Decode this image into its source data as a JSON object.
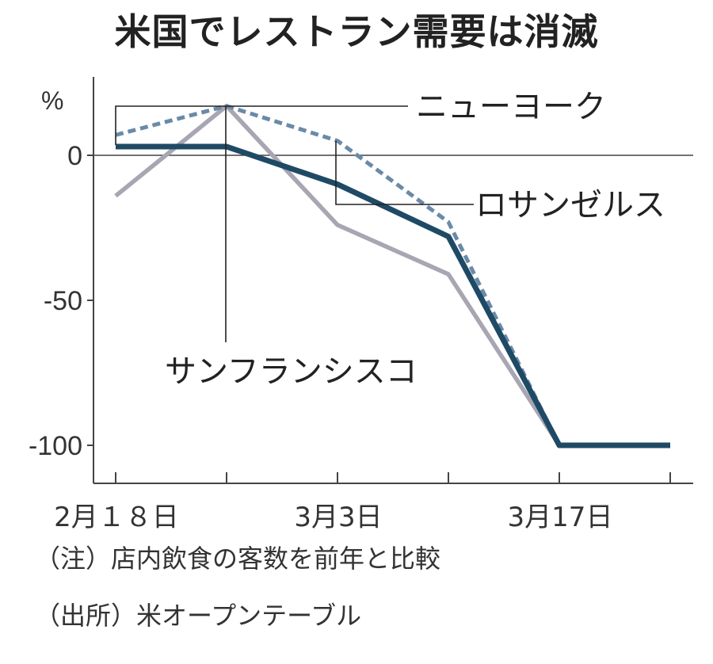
{
  "title": "米国でレストラン需要は消滅",
  "unit_label": "%",
  "notes": {
    "note": "（注）店内飲食の客数を前年と比較",
    "source": "（出所）米オープンテーブル"
  },
  "colors": {
    "new_york": "#6a8aa8",
    "los_angeles": "#1f4a66",
    "san_francisco": "#a8a6b2",
    "axis": "#444444"
  },
  "chart_data": {
    "type": "line",
    "title": "米国でレストラン需要は消滅",
    "ylabel": "%",
    "xlabel": "",
    "ylim": [
      -112,
      28
    ],
    "yticks": [
      0,
      -50,
      -100
    ],
    "ytick_labels": [
      "0",
      "-50",
      "-100"
    ],
    "x": [
      0,
      7,
      14,
      21,
      28,
      35
    ],
    "x_tick_positions": [
      0,
      7,
      14,
      21,
      28,
      35
    ],
    "x_tick_labels": [
      {
        "pos": 0,
        "label": "2月１８日"
      },
      {
        "pos": 14,
        "label": "3月3日"
      },
      {
        "pos": 28,
        "label": "3月17日"
      }
    ],
    "grid": false,
    "series": [
      {
        "name": "ニューヨーク",
        "style": "dashed",
        "values": [
          7,
          17,
          5,
          -23,
          -100,
          -100
        ]
      },
      {
        "name": "ロサンゼルス",
        "style": "solid",
        "values": [
          3,
          3,
          -10,
          -28,
          -100,
          -100
        ]
      },
      {
        "name": "サンフランシスコ",
        "style": "solid",
        "values": [
          -14,
          17,
          -24,
          -41,
          -100,
          -100
        ]
      }
    ]
  }
}
